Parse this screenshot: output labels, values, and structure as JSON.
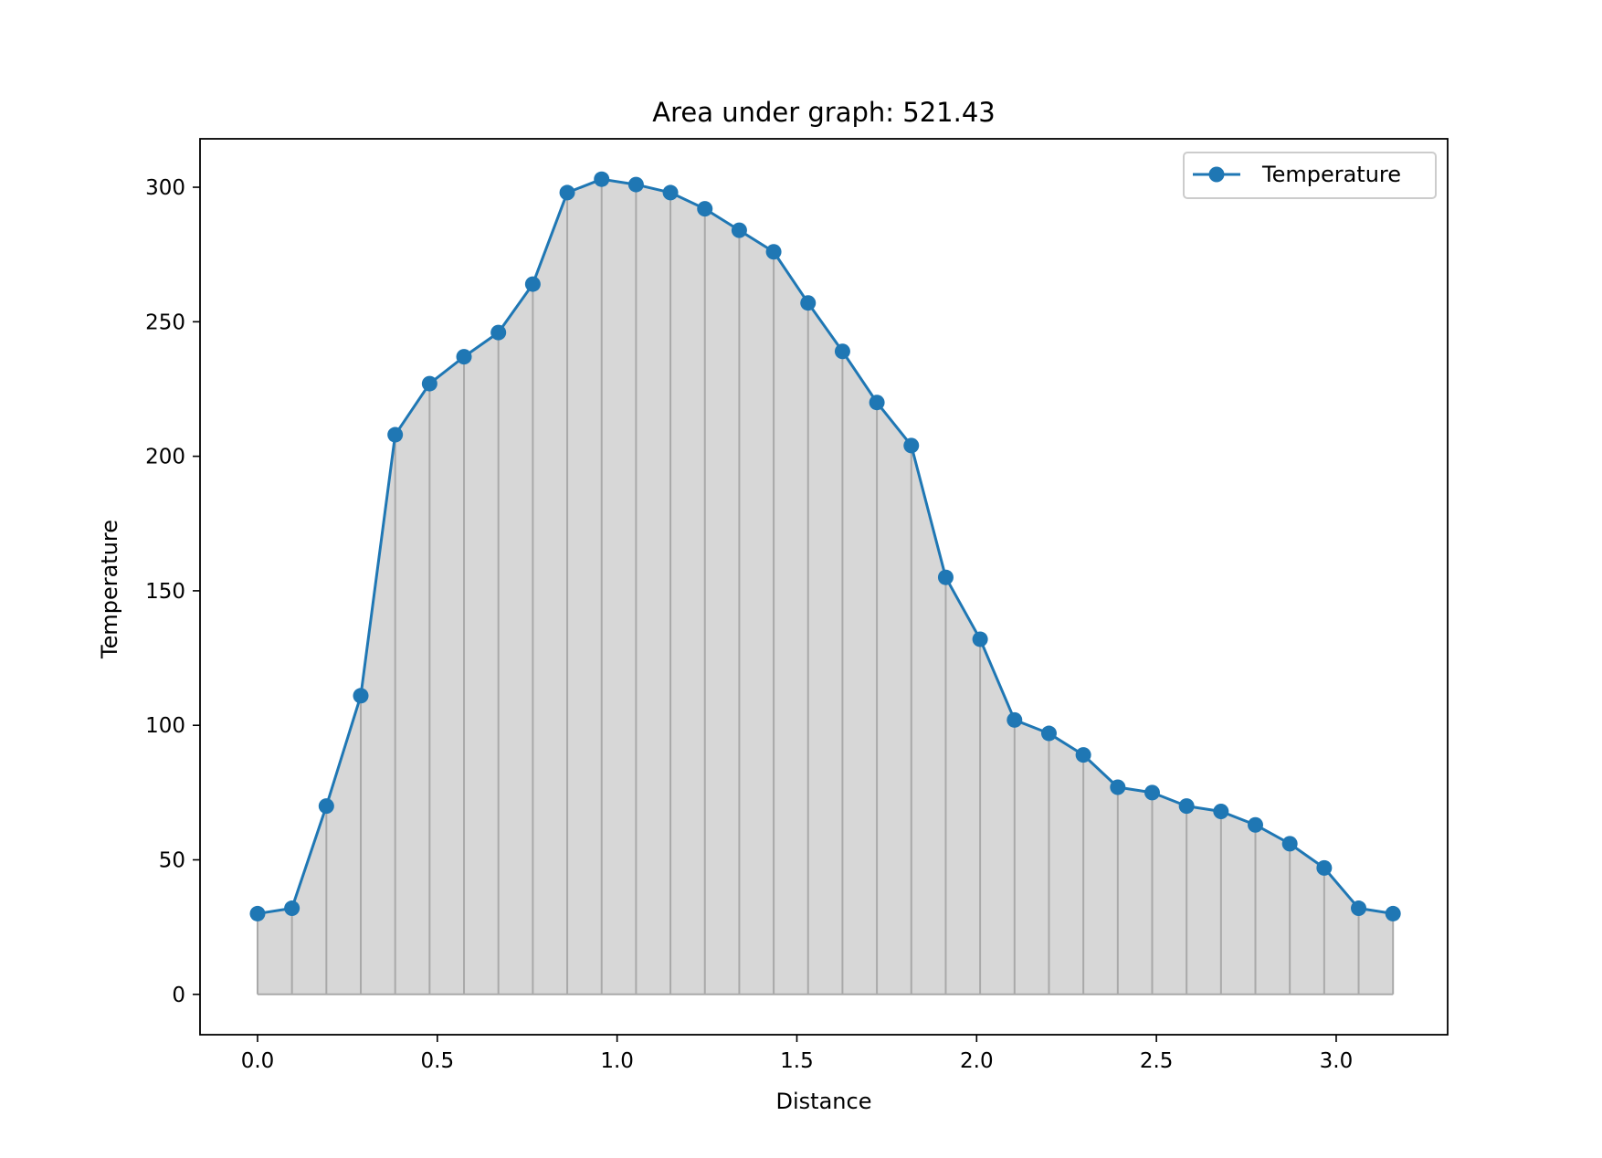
{
  "chart_data": {
    "type": "line",
    "title": "Area under graph: 521.43",
    "xlabel": "Distance",
    "ylabel": "Temperature",
    "xlim": [
      -0.16,
      3.31
    ],
    "ylim": [
      -15,
      318
    ],
    "xticks": [
      "0.0",
      "0.5",
      "1.0",
      "1.5",
      "2.0",
      "2.5",
      "3.0"
    ],
    "yticks": [
      "0",
      "50",
      "100",
      "150",
      "200",
      "250",
      "300"
    ],
    "legend_position": "top-right",
    "fill_under": true,
    "vertical_dividers": true,
    "colors": {
      "line": "#1f77b4",
      "fill": "#d7d7d7",
      "dividers": "#a9a9a9"
    },
    "series": [
      {
        "name": "Temperature",
        "x": [
          0.0,
          0.0957,
          0.1914,
          0.2871,
          0.3828,
          0.4785,
          0.5742,
          0.6699,
          0.7656,
          0.8613,
          0.957,
          1.0527,
          1.1484,
          1.2441,
          1.3398,
          1.4355,
          1.5312,
          1.6269,
          1.7226,
          1.8183,
          1.914,
          2.0097,
          2.1054,
          2.2011,
          2.2968,
          2.3925,
          2.4882,
          2.5839,
          2.6796,
          2.7753,
          2.871,
          2.9667,
          3.0624,
          3.1581
        ],
        "y": [
          30,
          32,
          70,
          111,
          208,
          227,
          237,
          246,
          264,
          298,
          303,
          301,
          298,
          292,
          284,
          276,
          257,
          239,
          220,
          204,
          155,
          132,
          102,
          97,
          89,
          77,
          75,
          70,
          68,
          63,
          56,
          47,
          32,
          30
        ]
      }
    ]
  }
}
